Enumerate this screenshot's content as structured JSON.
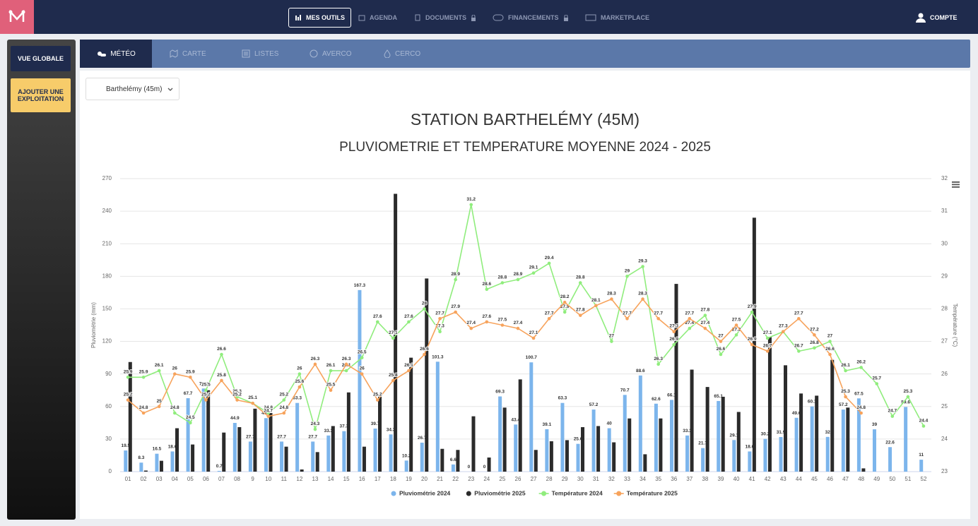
{
  "nav": {
    "items": [
      "MES OUTILS",
      "AGENDA",
      "DOCUMENTS",
      "FINANCEMENTS",
      "MARKETPLACE"
    ],
    "account": "COMPTE"
  },
  "sidebar": {
    "buttons": [
      "VUE GLOBALE",
      "AJOUTER UNE EXPLOITATION"
    ]
  },
  "tabs": [
    "MÉTÉO",
    "CARTE",
    "LISTES",
    "AVERCO",
    "CERCO"
  ],
  "station_select": "Barthelémy (45m)",
  "chart_data": {
    "type": "combo",
    "title": "STATION BARTHELÉMY (45M)",
    "subtitle": "PLUVIOMETRIE ET TEMPERATURE MOYENNE 2024 - 2025",
    "y_label": "Pluviométrie (mm)",
    "y2_label": "Température (°C)",
    "categories": [
      "01",
      "02",
      "03",
      "04",
      "05",
      "06",
      "07",
      "08",
      "9",
      "10",
      "11",
      "12",
      "13",
      "14",
      "15",
      "16",
      "17",
      "18",
      "19",
      "20",
      "21",
      "22",
      "23",
      "24",
      "25",
      "26",
      "27",
      "28",
      "29",
      "30",
      "31",
      "32",
      "33",
      "34",
      "35",
      "36",
      "37",
      "38",
      "39",
      "40",
      "41",
      "42",
      "43",
      "44",
      "45",
      "46",
      "47",
      "48",
      "49",
      "50",
      "51",
      "52"
    ],
    "ylim": [
      0,
      270
    ],
    "yticks": [
      0,
      30,
      60,
      90,
      120,
      150,
      180,
      210,
      240,
      270
    ],
    "y2lim": [
      23,
      32
    ],
    "y2ticks": [
      23,
      24,
      25,
      26,
      27,
      28,
      29,
      30,
      31,
      32
    ],
    "grid": true,
    "series": [
      {
        "name": "Pluviométrie 2024",
        "type": "bar",
        "color": "#7cb5ec",
        "data_labels": true,
        "values": [
          19.5,
          8.3,
          16.5,
          18.6,
          67.7,
          76.6,
          0.7,
          44.9,
          27.7,
          49.3,
          27.7,
          63.3,
          27.7,
          33.3,
          37.3,
          167.3,
          39.7,
          34.3,
          10.2,
          26.7,
          101.3,
          6.6,
          0,
          0,
          69.3,
          43.4,
          100.7,
          39.1,
          63.3,
          25.6,
          57.2,
          40,
          70.7,
          88.6,
          62.6,
          66.1,
          33.3,
          21.7,
          65.1,
          29.1,
          18.6,
          30.2,
          31.9,
          49.6,
          60.1,
          32,
          57.2,
          67.5,
          39,
          22.6,
          59.6,
          11
        ]
      },
      {
        "name": "Pluviométrie 2025",
        "type": "bar",
        "color": "#2b2b2b",
        "data_labels": false,
        "values": [
          101,
          1,
          10,
          40,
          25,
          75,
          36,
          41,
          58,
          54,
          23,
          2,
          18,
          42,
          73,
          23,
          69,
          256,
          105,
          178,
          21,
          20,
          51,
          13,
          59,
          85,
          20,
          28,
          29,
          41,
          42,
          27,
          49,
          16,
          49,
          173,
          94,
          78,
          69,
          55,
          234,
          124,
          98,
          72,
          70,
          103,
          59,
          3,
          null,
          null,
          null,
          null
        ]
      },
      {
        "name": "Température 2024",
        "type": "line",
        "axis": "y2",
        "color": "#90ed7d",
        "data_labels": true,
        "values": [
          25.9,
          25.9,
          26.1,
          24.8,
          24.5,
          25.5,
          26.6,
          25.3,
          25.1,
          24.8,
          25.2,
          26,
          24.3,
          26.1,
          26.1,
          26.5,
          27.6,
          27.1,
          27.6,
          28,
          27.3,
          28.9,
          31.2,
          28.6,
          28.8,
          28.9,
          29.1,
          29.4,
          27.9,
          28.8,
          28.1,
          27,
          29,
          29.3,
          26.3,
          26.9,
          27.4,
          27.8,
          26.6,
          27.2,
          27.9,
          27.1,
          27.3,
          26.7,
          26.8,
          27,
          26.1,
          26.2,
          25.7,
          24.7,
          25.3,
          24.4
        ]
      },
      {
        "name": "Température 2025",
        "type": "line",
        "axis": "y2",
        "color": "#f7a35c",
        "data_labels": true,
        "values": [
          25.2,
          24.8,
          25,
          26,
          25.9,
          25.2,
          25.8,
          25.2,
          25.1,
          24.7,
          24.8,
          25.6,
          26.3,
          25.5,
          26.3,
          26,
          25.2,
          25.8,
          26.1,
          26.6,
          27.7,
          27.9,
          27.4,
          27.6,
          27.5,
          27.4,
          27.1,
          27.7,
          28.2,
          27.8,
          28.1,
          28.3,
          27.7,
          28.3,
          27.7,
          27.3,
          27.7,
          27.4,
          27,
          27.5,
          26.9,
          26.7,
          27.3,
          27.7,
          27.2,
          26.6,
          25.3,
          24.8,
          null,
          null,
          null,
          null
        ]
      }
    ]
  }
}
